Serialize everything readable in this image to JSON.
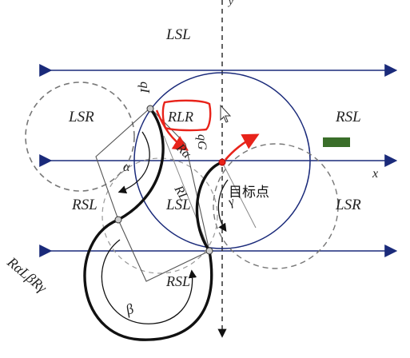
{
  "axes": {
    "x_label": "x",
    "y_label": "y"
  },
  "regions": {
    "lsl_top": "LSL",
    "lsr_left": "LSR",
    "rlr_center": "RLR",
    "rsl_right": "RSL",
    "rsl_left": "RSL",
    "lsl_mid": "LSL",
    "lsr_right": "LSR",
    "rsl_bottom": "RSL"
  },
  "points": {
    "q_i": "qI",
    "q_g": "qG",
    "target_point": "目标点"
  },
  "angles": {
    "alpha": "α",
    "beta": "β",
    "gamma": "γ"
  },
  "path_labels": {
    "r_alpha": "Rα",
    "r_l": "RL",
    "path_word": "RαLβRγ"
  },
  "colors": {
    "axis_blue": "#1a2a7a",
    "path_black": "#111111",
    "dashed_gray": "#777777",
    "annotation_red": "#e8231a",
    "marker_green": "#3a6e2a"
  },
  "marker": {
    "shape": "green rectangle"
  }
}
